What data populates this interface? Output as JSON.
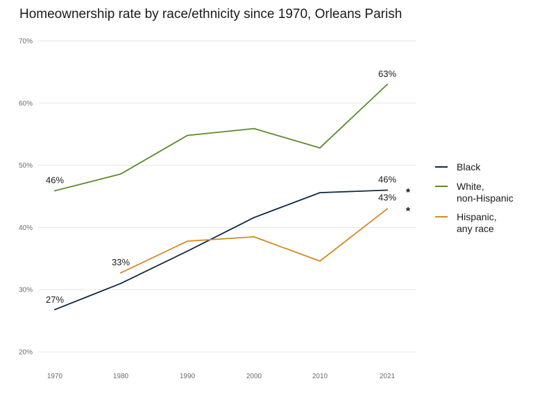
{
  "chart_data": {
    "type": "line",
    "title": "Homeownership rate by race/ethnicity since 1970, Orleans Parish",
    "xlabel": "",
    "ylabel": "",
    "x": [
      "1970",
      "1980",
      "1990",
      "2000",
      "2010",
      "2021"
    ],
    "ylim": [
      20,
      70
    ],
    "yticks": [
      20,
      30,
      40,
      50,
      60,
      70
    ],
    "ytick_labels": [
      "20%",
      "30%",
      "40%",
      "50%",
      "60%",
      "70%"
    ],
    "grid": true,
    "legend": "right",
    "series": [
      {
        "name": "Black",
        "color": "#0d2a42",
        "values": [
          26.8,
          31.0,
          36.2,
          41.6,
          45.6,
          46.0
        ],
        "labels": [
          {
            "index": 0,
            "text": "27%"
          },
          {
            "index": 5,
            "text": "46%"
          }
        ]
      },
      {
        "name": "White, non-Hispanic",
        "legend_lines": [
          "White,",
          "non-Hispanic"
        ],
        "color": "#5a8a30",
        "values": [
          45.9,
          48.6,
          54.8,
          55.9,
          52.8,
          63.0
        ],
        "labels": [
          {
            "index": 0,
            "text": "46%"
          },
          {
            "index": 5,
            "text": "63%"
          }
        ]
      },
      {
        "name": "Hispanic, any race",
        "legend_lines": [
          "Hispanic,",
          "any race"
        ],
        "color": "#d4891f",
        "values": [
          null,
          32.7,
          37.8,
          38.5,
          34.6,
          43.0
        ],
        "labels": [
          {
            "index": 1,
            "text": "33%"
          },
          {
            "index": 5,
            "text": "43%"
          }
        ]
      }
    ],
    "annotations": [
      "*",
      "*"
    ]
  }
}
